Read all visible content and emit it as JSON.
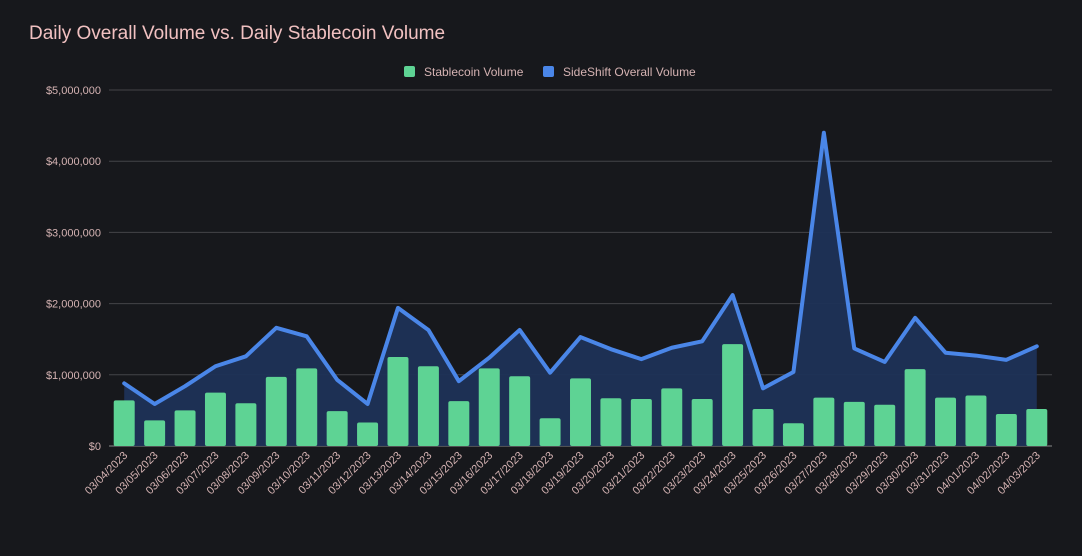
{
  "chart_data": {
    "type": "bar+area",
    "title": "Daily Overall Volume vs. Daily Stablecoin Volume",
    "xlabel": "",
    "ylabel": "",
    "ylim": [
      0,
      5000000
    ],
    "y_ticks": [
      0,
      1000000,
      2000000,
      3000000,
      4000000,
      5000000
    ],
    "y_tick_labels": [
      "$0",
      "$1,000,000",
      "$2,000,000",
      "$3,000,000",
      "$4,000,000",
      "$5,000,000"
    ],
    "legend_position": "top-center",
    "grid": true,
    "categories": [
      "03/04/2023",
      "03/05/2023",
      "03/06/2023",
      "03/07/2023",
      "03/08/2023",
      "03/09/2023",
      "03/10/2023",
      "03/11/2023",
      "03/12/2023",
      "03/13/2023",
      "03/14/2023",
      "03/15/2023",
      "03/16/2023",
      "03/17/2023",
      "03/18/2023",
      "03/19/2023",
      "03/20/2023",
      "03/21/2023",
      "03/22/2023",
      "03/23/2023",
      "03/24/2023",
      "03/25/2023",
      "03/26/2023",
      "03/27/2023",
      "03/28/2023",
      "03/29/2023",
      "03/30/2023",
      "03/31/2023",
      "04/01/2023",
      "04/02/2023",
      "04/03/2023"
    ],
    "series": [
      {
        "name": "Stablecoin Volume",
        "kind": "bar",
        "color": "#5ed394",
        "values": [
          640000,
          360000,
          500000,
          750000,
          600000,
          970000,
          1090000,
          490000,
          330000,
          1250000,
          1120000,
          630000,
          1090000,
          980000,
          390000,
          950000,
          670000,
          660000,
          810000,
          660000,
          1430000,
          520000,
          320000,
          680000,
          620000,
          580000,
          1080000,
          680000,
          710000,
          450000,
          520000
        ]
      },
      {
        "name": "SideShift Overall Volume",
        "kind": "area",
        "color": "#4a86e8",
        "fill": "#1e3257",
        "values": [
          880000,
          590000,
          840000,
          1120000,
          1260000,
          1660000,
          1540000,
          930000,
          590000,
          1940000,
          1630000,
          910000,
          1240000,
          1630000,
          1030000,
          1530000,
          1360000,
          1220000,
          1380000,
          1470000,
          2120000,
          810000,
          1040000,
          4400000,
          1370000,
          1180000,
          1800000,
          1310000,
          1270000,
          1210000,
          1400000
        ]
      }
    ]
  }
}
